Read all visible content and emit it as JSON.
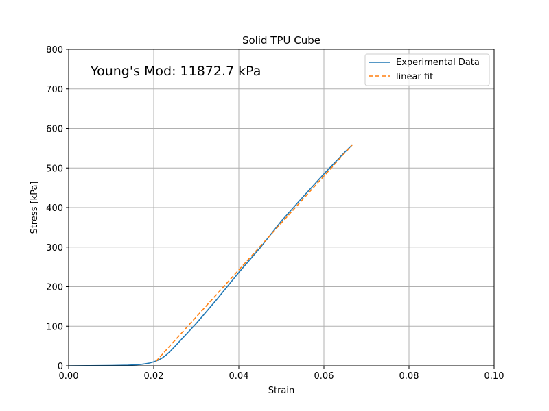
{
  "chart_data": {
    "type": "line",
    "title": "Solid TPU Cube",
    "xlabel": "Strain",
    "ylabel": "Stress [kPa]",
    "xlim": [
      0.0,
      0.1
    ],
    "ylim": [
      0,
      800
    ],
    "xticks": [
      0.0,
      0.02,
      0.04,
      0.06,
      0.08,
      0.1
    ],
    "xtick_labels": [
      "0.00",
      "0.02",
      "0.04",
      "0.06",
      "0.08",
      "0.10"
    ],
    "yticks": [
      0,
      100,
      200,
      300,
      400,
      500,
      600,
      700,
      800
    ],
    "ytick_labels": [
      "0",
      "100",
      "200",
      "300",
      "400",
      "500",
      "600",
      "700",
      "800"
    ],
    "grid": true,
    "legend_position": "top-right",
    "annotation": "Young's Mod: 11872.7 kPa",
    "series": [
      {
        "name": "Experimental Data",
        "color": "#1f77b4",
        "linestyle": "solid",
        "x": [
          0.0,
          0.005,
          0.01,
          0.014,
          0.016,
          0.017,
          0.018,
          0.019,
          0.02,
          0.021,
          0.022,
          0.023,
          0.024,
          0.026,
          0.028,
          0.03,
          0.035,
          0.04,
          0.045,
          0.05,
          0.055,
          0.06,
          0.065,
          0.0667
        ],
        "y": [
          0,
          0.3,
          0.8,
          1.8,
          2.8,
          3.6,
          5.0,
          7.0,
          10.0,
          14.0,
          20.0,
          28.0,
          38.0,
          61.0,
          84.0,
          107.0,
          170.0,
          236.0,
          298.0,
          366.0,
          426.0,
          485.0,
          541.0,
          559.0
        ]
      },
      {
        "name": "linear fit",
        "color": "#ff7f0e",
        "linestyle": "dashed",
        "x": [
          0.0205,
          0.0667
        ],
        "y": [
          11.0,
          559.0
        ]
      }
    ]
  }
}
